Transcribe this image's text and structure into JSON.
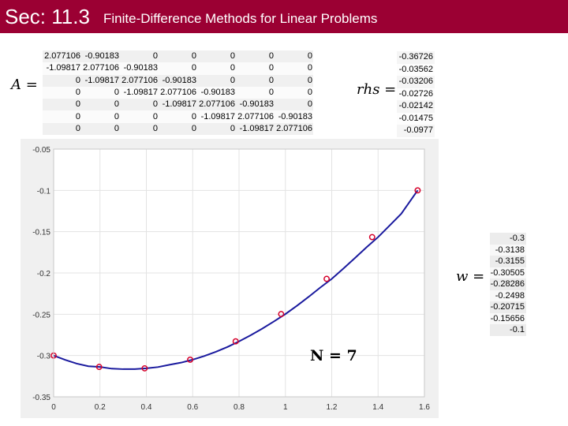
{
  "header": {
    "section": "Sec: 11.3",
    "title": "Finite-Difference Methods for Linear Problems",
    "color": "#9b0033"
  },
  "labels": {
    "A": "A =",
    "rhs": "rhs =",
    "w": "w =",
    "N": "N = 7"
  },
  "matrix_A": [
    [
      "2.077106",
      "-0.90183",
      "0",
      "0",
      "0",
      "0",
      "0"
    ],
    [
      "-1.09817",
      "2.077106",
      "-0.90183",
      "0",
      "0",
      "0",
      "0"
    ],
    [
      "0",
      "-1.09817",
      "2.077106",
      "-0.90183",
      "0",
      "0",
      "0"
    ],
    [
      "0",
      "0",
      "-1.09817",
      "2.077106",
      "-0.90183",
      "0",
      "0"
    ],
    [
      "0",
      "0",
      "0",
      "-1.09817",
      "2.077106",
      "-0.90183",
      "0"
    ],
    [
      "0",
      "0",
      "0",
      "0",
      "-1.09817",
      "2.077106",
      "-0.90183"
    ],
    [
      "0",
      "0",
      "0",
      "0",
      "0",
      "-1.09817",
      "2.077106"
    ]
  ],
  "rhs": [
    "-0.36726",
    "-0.03562",
    "-0.03206",
    "-0.02726",
    "-0.02142",
    "-0.01475",
    "-0.0977"
  ],
  "w": [
    "-0.3",
    "-0.3138",
    "-0.3155",
    "-0.30505",
    "-0.28286",
    "-0.2498",
    "-0.20715",
    "-0.15656",
    "-0.1"
  ],
  "chart_data": {
    "type": "line",
    "xlim": [
      0,
      1.6
    ],
    "ylim": [
      -0.35,
      -0.05
    ],
    "xticks": [
      "0",
      "0.2",
      "0.4",
      "0.6",
      "0.8",
      "1",
      "1.2",
      "1.4",
      "1.6"
    ],
    "yticks": [
      "-0.05",
      "-0.1",
      "-0.15",
      "-0.2",
      "-0.25",
      "-0.3",
      "-0.35"
    ],
    "grid": true,
    "series": [
      {
        "style": "solid line",
        "color": "#1a1a9e",
        "x": [
          0,
          0.05,
          0.1,
          0.15,
          0.2,
          0.25,
          0.3,
          0.35,
          0.4,
          0.45,
          0.5,
          0.55,
          0.6,
          0.65,
          0.7,
          0.75,
          0.8,
          0.85,
          0.9,
          0.95,
          1.0,
          1.05,
          1.1,
          1.15,
          1.2,
          1.25,
          1.3,
          1.35,
          1.4,
          1.45,
          1.5,
          1.5708
        ],
        "y": [
          -0.3,
          -0.3053,
          -0.3098,
          -0.313,
          -0.3138,
          -0.3159,
          -0.3165,
          -0.3164,
          -0.3155,
          -0.314,
          -0.3112,
          -0.3086,
          -0.305,
          -0.3006,
          -0.2955,
          -0.2896,
          -0.2829,
          -0.2755,
          -0.2675,
          -0.2588,
          -0.2498,
          -0.2397,
          -0.229,
          -0.2178,
          -0.2072,
          -0.1948,
          -0.182,
          -0.169,
          -0.1566,
          -0.1425,
          -0.1283,
          -0.1
        ]
      },
      {
        "style": "circle markers",
        "color": "#d6002a",
        "x": [
          0,
          0.19635,
          0.3927,
          0.58905,
          0.7854,
          0.98175,
          1.1781,
          1.37445,
          1.5708
        ],
        "y": [
          -0.3,
          -0.3138,
          -0.3155,
          -0.30505,
          -0.28286,
          -0.2498,
          -0.20715,
          -0.15656,
          -0.1
        ]
      }
    ]
  }
}
